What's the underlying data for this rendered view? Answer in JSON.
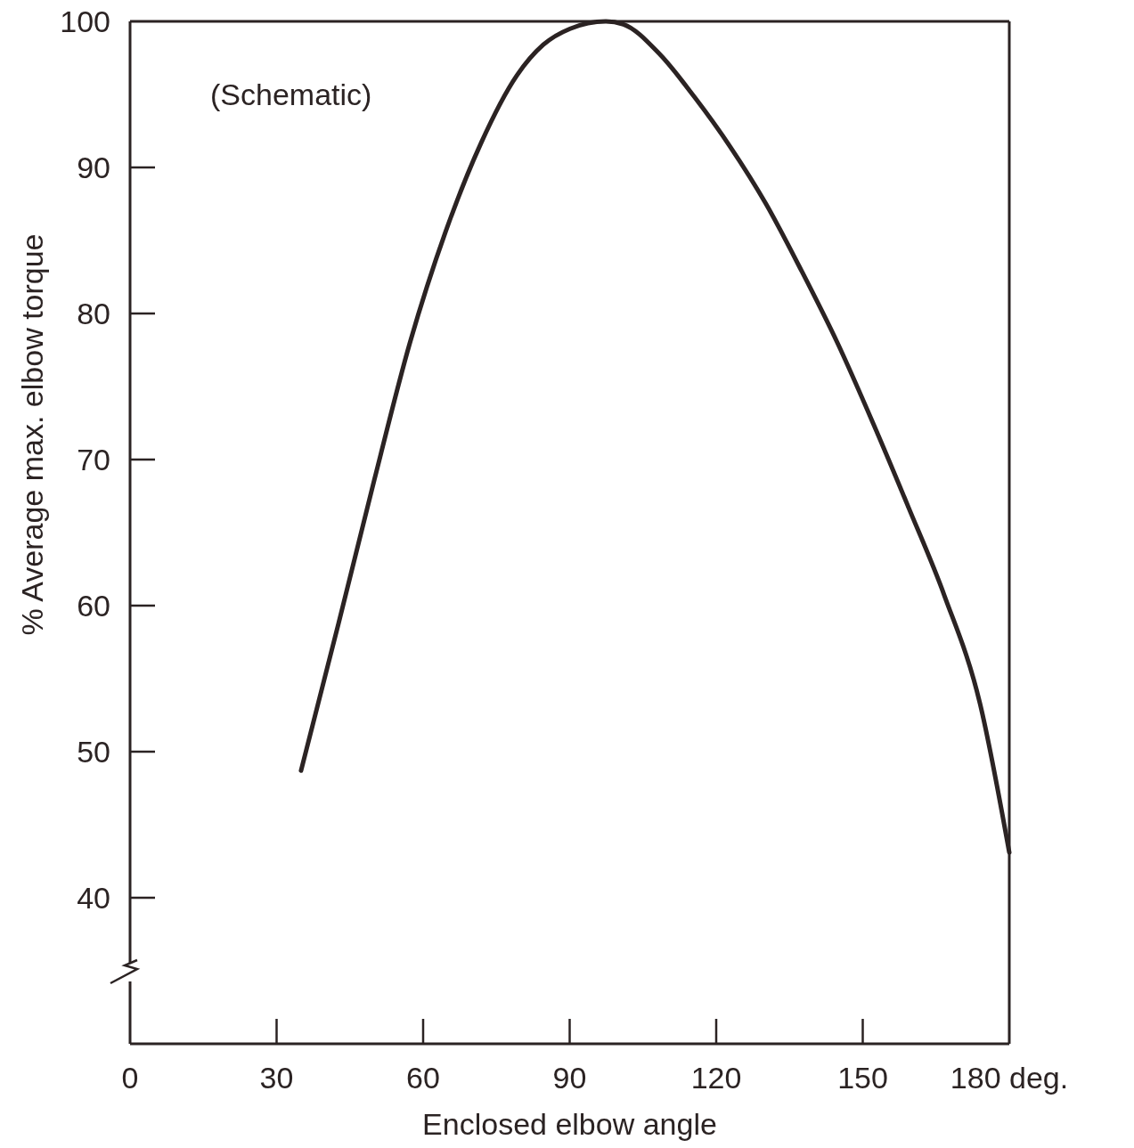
{
  "chart_data": {
    "type": "line",
    "xlabel": "Enclosed elbow angle",
    "ylabel": "% Average max. elbow torque",
    "annotations": [
      "(Schematic)"
    ],
    "x": [
      35,
      42.7,
      50,
      57.3,
      64.6,
      71.9,
      79.2,
      84.6,
      90.1,
      97.4,
      101,
      108.3,
      115.6,
      122.9,
      130.2,
      137.5,
      144.8,
      152.1,
      159.4,
      166.7,
      174,
      180
    ],
    "series": [
      {
        "color": "#2b2323",
        "values": [
          48.7,
          58.8,
          68.6,
          78,
          85.6,
          91.7,
          96.3,
          98.4,
          99.5,
          100,
          99.8,
          97.8,
          94.8,
          91.4,
          87.5,
          82.9,
          78,
          72.5,
          66.7,
          60.7,
          53.3,
          43.1
        ]
      }
    ],
    "xlim": [
      0,
      180
    ],
    "ylim": [
      30,
      100
    ],
    "xticks": [
      0,
      30,
      60,
      90,
      120,
      150,
      {
        "value": 180,
        "label": "180 deg."
      }
    ],
    "yticks": [
      40,
      50,
      60,
      70,
      80,
      90,
      100
    ],
    "grid": false,
    "marker": "none",
    "line_style": "solid"
  }
}
